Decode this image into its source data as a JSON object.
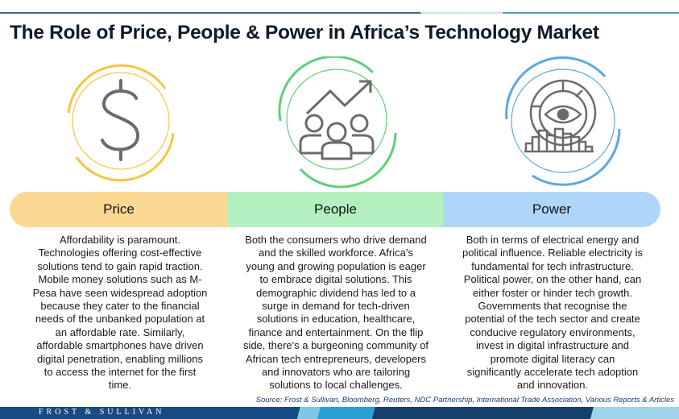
{
  "title": "The Role of Price, People & Power in Africa’s Technology Market",
  "colors": {
    "price": "#fcd993",
    "people": "#b3f0c0",
    "power": "#aed6f8",
    "price_ring": "#f5c542",
    "people_ring": "#5fcf7a",
    "power_ring": "#5aa8e8",
    "icon_stroke": "#6b6b6b"
  },
  "pillars": [
    {
      "label": "Price",
      "icon": "dollar-sign-icon",
      "lines": [
        "Affordability is paramount.",
        "Technologies offering cost-effective",
        "solutions tend to gain rapid traction.",
        "Mobile money solutions such as M-",
        "Pesa have seen widespread adoption",
        "because they cater to the financial",
        "needs of the unbanked population at",
        "an affordable rate. Similarly,",
        "affordable smartphones have driven",
        "digital penetration, enabling millions",
        "to access the internet for the first",
        "time."
      ]
    },
    {
      "label": "People",
      "icon": "people-growth-icon",
      "lines": [
        "Both the consumers who drive demand",
        "and the skilled workforce. Africa’s",
        "young and growing population is eager",
        "to embrace digital solutions. This",
        "demographic dividend has led to a",
        "surge in demand for tech-driven",
        "solutions in education, healthcare,",
        "finance and entertainment. On the flip",
        "side, there's a burgeoning community of",
        "African tech entrepreneurs, developers",
        "and innovators who are tailoring",
        "solutions to local challenges."
      ]
    },
    {
      "label": "Power",
      "icon": "eye-analytics-icon",
      "lines": [
        "Both in terms of electrical energy and",
        "political influence. Reliable electricity is",
        "fundamental for tech infrastructure.",
        "Political power, on the other hand, can",
        "either foster or hinder tech growth.",
        "Governments that recognise the",
        "potential of the tech sector and create",
        "conducive regulatory environments,",
        "invest in digital infrastructure and",
        "promote digital literacy can",
        "significantly accelerate tech adoption",
        "and innovation."
      ]
    }
  ],
  "source": "Source: Frost & Sullivan, Bloomberg, Reuters, NDC Partnership, International Trade Association, Various Reports & Articles",
  "brand": "FROST & SULLIVAN"
}
